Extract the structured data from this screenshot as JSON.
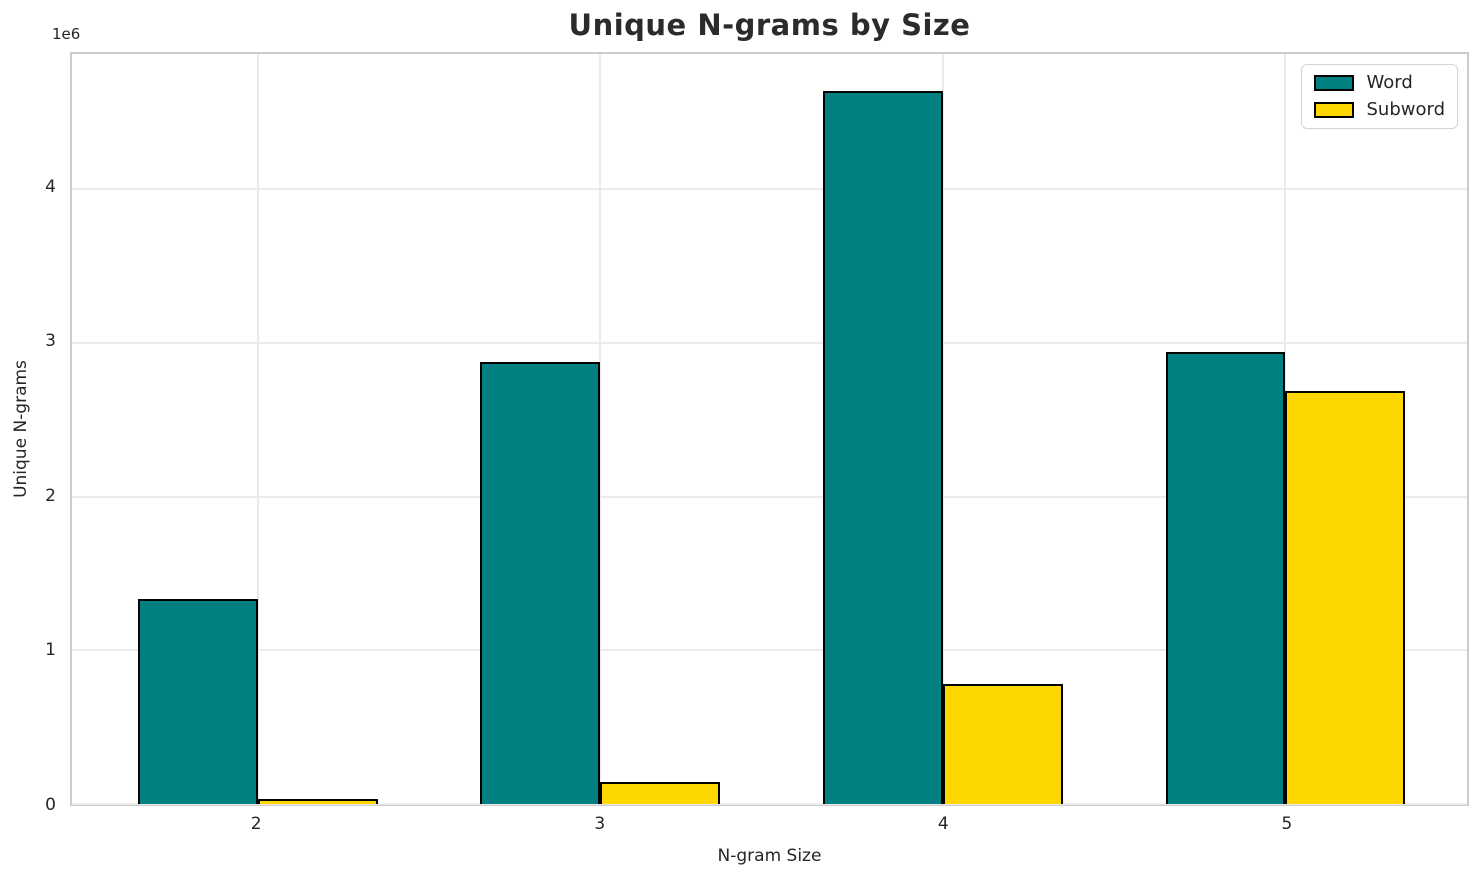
{
  "chart_data": {
    "type": "bar",
    "title": "Unique N-grams by Size",
    "xlabel": "N-gram Size",
    "ylabel": "Unique N-grams",
    "y_offset_label": "1e6",
    "categories": [
      2,
      3,
      4,
      5
    ],
    "series": [
      {
        "name": "Word",
        "color": "#008080",
        "values": [
          1335000,
          2875000,
          4640000,
          2940000
        ]
      },
      {
        "name": "Subword",
        "color": "#FFD700",
        "values": [
          30000,
          140000,
          780000,
          2690000
        ]
      }
    ],
    "bar_edge_color": "#000000",
    "bar_width_data_units": 0.35,
    "xlim": [
      1.458,
      5.53
    ],
    "ylim": [
      0,
      4880000
    ],
    "y_ticks": [
      0,
      1,
      2,
      3,
      4
    ],
    "y_tick_scale": 1000000,
    "grid": true,
    "legend_position": "upper right"
  },
  "colors": {
    "grid": "#ebebeb",
    "spine": "#cccccc",
    "text": "#262626",
    "title": "#2b2b2b"
  }
}
